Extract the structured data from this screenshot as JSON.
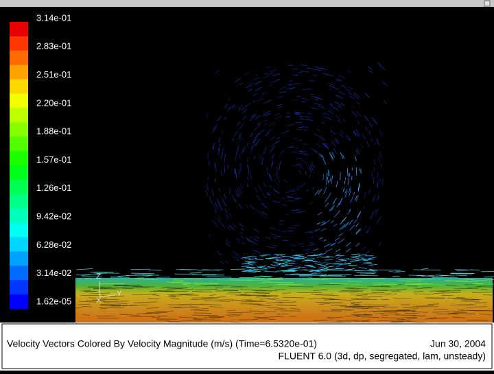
{
  "colorbar": {
    "labels": [
      "3.14e-01",
      "2.83e-01",
      "2.51e-01",
      "2.20e-01",
      "1.88e-01",
      "1.57e-01",
      "1.26e-01",
      "9.42e-02",
      "6.28e-02",
      "3.14e-02",
      "1.62e-05"
    ]
  },
  "axes_triad": {
    "z": "Z",
    "x": "X",
    "y": "Y"
  },
  "footer": {
    "description": "Velocity Vectors Colored By Velocity Magnitude (m/s)  (Time=6.5320e-01)",
    "date": "Jun 30, 2004",
    "solver": "FLUENT 6.0 (3d, dp, segregated, lam, unsteady)"
  }
}
